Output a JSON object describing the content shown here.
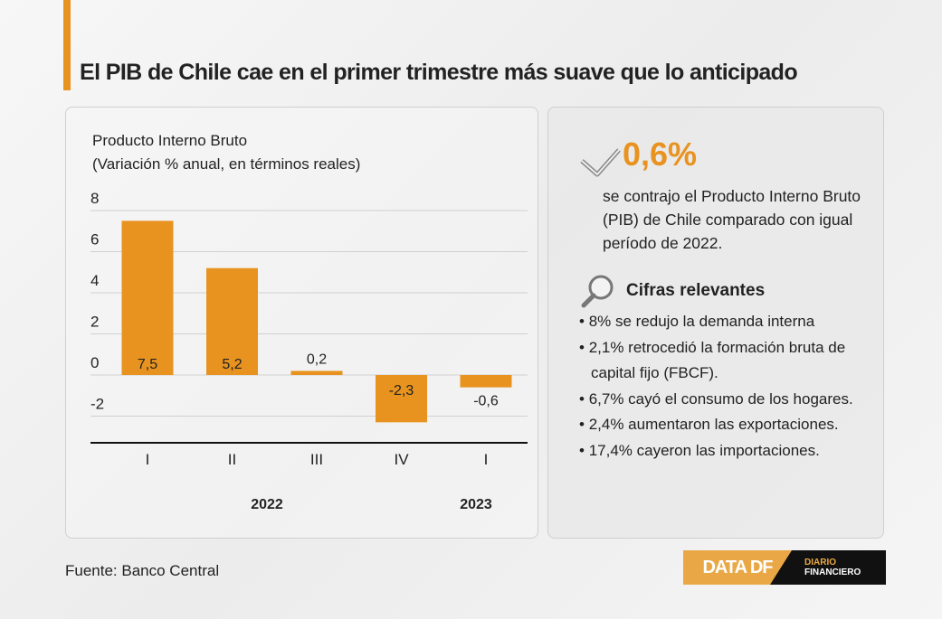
{
  "header": {
    "title": "El PIB de Chile cae en el primer trimestre más suave que lo anticipado"
  },
  "chart_data": {
    "type": "bar",
    "title": "Producto Interno Bruto",
    "subtitle": "(Variación % anual, en términos reales)",
    "categories": [
      "I",
      "II",
      "III",
      "IV",
      "I"
    ],
    "groups": [
      {
        "label": "2022",
        "span": 4
      },
      {
        "label": "2023",
        "span": 1
      }
    ],
    "values": [
      7.5,
      5.2,
      0.2,
      -2.3,
      -0.6
    ],
    "data_labels": [
      "7,5",
      "5,2",
      "0,2",
      "-2,3",
      "-0,6"
    ],
    "yticks": [
      8,
      6,
      4,
      2,
      0,
      -2
    ],
    "ylim": [
      -3.3,
      8
    ],
    "grid": true,
    "color": "#e8931f"
  },
  "highlight": {
    "value": "0,6%",
    "icon": "check-icon",
    "text": "se contrajo el  Producto Interno Bruto (PIB) de Chile comparado con igual período de 2022."
  },
  "cifras": {
    "icon": "magnifier-icon",
    "title": "Cifras relevantes",
    "items": [
      "8% se redujo la demanda interna",
      "2,1% retrocedió la formación bruta de capital fijo (FBCF).",
      "6,7% cayó el consumo de los hogares.",
      "2,4% aumentaron las exportaciones.",
      "17,4% cayeron las importaciones."
    ]
  },
  "footer": {
    "source": "Fuente: Banco Central",
    "logo_left": "DATA DF",
    "logo_right_1": "DIARIO",
    "logo_right_2": "FINANCIERO"
  }
}
